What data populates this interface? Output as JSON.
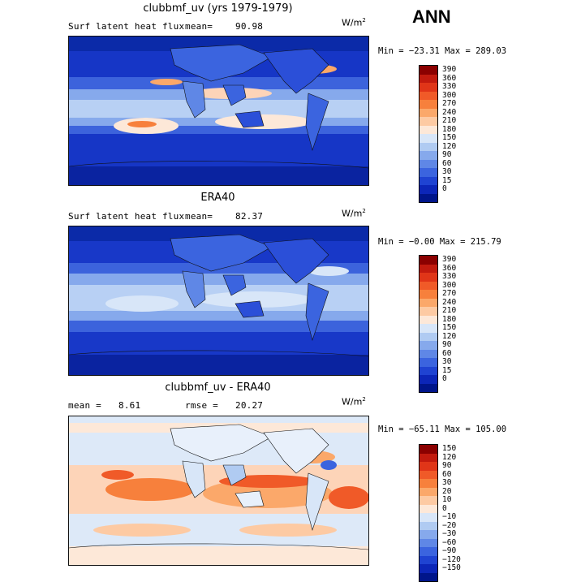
{
  "season": "ANN",
  "panels": [
    {
      "title": "clubbmf_uv (yrs 1979-1979)",
      "left_label": "Surf latent heat flux",
      "stat_label": "mean=",
      "stat_value": "90.98",
      "units": "W/m",
      "units_sup": "2",
      "minmax": "Min = −23.31 Max = 289.03",
      "colorbar_labels": [
        "390",
        "360",
        "330",
        "300",
        "270",
        "240",
        "210",
        "180",
        "150",
        "120",
        "90",
        "60",
        "30",
        "15",
        "0"
      ],
      "colorbar_colors": [
        "#8b0000",
        "#c21a0e",
        "#e03518",
        "#f05a28",
        "#f7803c",
        "#fba86a",
        "#fdcaa3",
        "#fde8d8",
        "#d8e6f8",
        "#b0cbf2",
        "#86a9ec",
        "#5f87e6",
        "#3b64df",
        "#1f43d2",
        "#0c26b8",
        "#00158a"
      ]
    },
    {
      "title": "ERA40",
      "left_label": "Surf latent heat flux",
      "stat_label": "mean=",
      "stat_value": "82.37",
      "units": "W/m",
      "units_sup": "2",
      "minmax": "Min =  −0.00 Max = 215.79",
      "colorbar_labels": [
        "390",
        "360",
        "330",
        "300",
        "270",
        "240",
        "210",
        "180",
        "150",
        "120",
        "90",
        "60",
        "30",
        "15",
        "0"
      ],
      "colorbar_colors": [
        "#8b0000",
        "#c21a0e",
        "#e03518",
        "#f05a28",
        "#f7803c",
        "#fba86a",
        "#fdcaa3",
        "#fde8d8",
        "#d8e6f8",
        "#b0cbf2",
        "#86a9ec",
        "#5f87e6",
        "#3b64df",
        "#1f43d2",
        "#0c26b8",
        "#00158a"
      ]
    },
    {
      "title": "clubbmf_uv - ERA40",
      "left_label": "mean =",
      "left_value": "8.61",
      "stat_label": "rmse =",
      "stat_value": "20.27",
      "units": "W/m",
      "units_sup": "2",
      "minmax": "Min = −65.11 Max = 105.00",
      "colorbar_labels": [
        "150",
        "120",
        "90",
        "60",
        "30",
        "20",
        "10",
        "0",
        "−10",
        "−20",
        "−30",
        "−60",
        "−90",
        "−120",
        "−150"
      ],
      "colorbar_colors": [
        "#8b0000",
        "#c21a0e",
        "#e03518",
        "#f05a28",
        "#f7803c",
        "#fba86a",
        "#fdcaa3",
        "#fde8d8",
        "#d8e6f8",
        "#b0cbf2",
        "#86a9ec",
        "#5f87e6",
        "#3b64df",
        "#1f43d2",
        "#0c26b8",
        "#00158a"
      ]
    }
  ]
}
